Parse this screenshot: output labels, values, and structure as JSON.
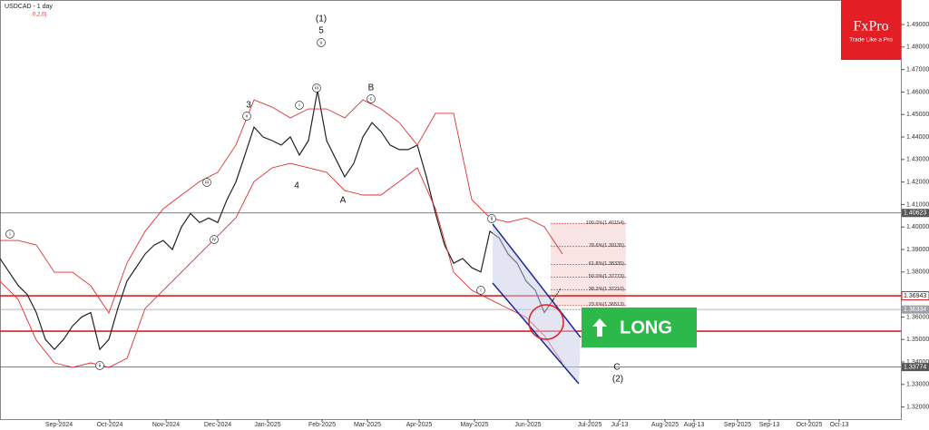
{
  "chart_data": {
    "type": "line",
    "title": "USDCAD - 1 day",
    "subtitle": "0,2,0)",
    "brand": "FxPro",
    "brand_tagline": "Trade Like a Pro",
    "signal": "LONG",
    "ylim": [
      1.3146,
      1.5009
    ],
    "yticks": [
      {
        "value": 1.32,
        "label": "1.32000"
      },
      {
        "value": 1.33,
        "label": "1.33000"
      },
      {
        "value": 1.34,
        "label": "1.34000"
      },
      {
        "value": 1.35,
        "label": "1.35000"
      },
      {
        "value": 1.36,
        "label": "1.36000"
      },
      {
        "value": 1.38,
        "label": "1.38000"
      },
      {
        "value": 1.39,
        "label": "1.39000"
      },
      {
        "value": 1.4,
        "label": "1.40000"
      },
      {
        "value": 1.41,
        "label": "1.41000"
      },
      {
        "value": 1.42,
        "label": "1.42000"
      },
      {
        "value": 1.43,
        "label": "1.43000"
      },
      {
        "value": 1.44,
        "label": "1.44000"
      },
      {
        "value": 1.45,
        "label": "1.45000"
      },
      {
        "value": 1.46,
        "label": "1.46000"
      },
      {
        "value": 1.47,
        "label": "1.47000"
      },
      {
        "value": 1.48,
        "label": "1.48000"
      },
      {
        "value": 1.49,
        "label": "1.49000"
      }
    ],
    "xtick_labels": [
      "Sep-2024",
      "Oct-2024",
      "Nov-2024",
      "Dec-2024",
      "Jan-2025",
      "Feb-2025",
      "Mar-2025",
      "Apr-2025",
      "May-2025",
      "Jun-2025",
      "Jul-2025",
      "Jul-13",
      "Aug-2025",
      "Aug-13",
      "Sep-2025",
      "Sep-13",
      "Oct-2025",
      "Oct-13"
    ],
    "series": [
      {
        "name": "USDCAD",
        "color": "#222222",
        "values": [
          1.386,
          1.38,
          1.374,
          1.37,
          1.362,
          1.35,
          1.3456,
          1.35,
          1.356,
          1.36,
          1.362,
          1.3456,
          1.35,
          1.364,
          1.376,
          1.382,
          1.388,
          1.392,
          1.394,
          1.39,
          1.4,
          1.406,
          1.402,
          1.404,
          1.402,
          1.412,
          1.42,
          1.432,
          1.4444,
          1.44,
          1.4384,
          1.4364,
          1.44,
          1.432,
          1.4384,
          1.4606,
          1.4384,
          1.4303,
          1.4223,
          1.4283,
          1.44,
          1.4464,
          1.4424,
          1.4364,
          1.4344,
          1.4344,
          1.4364,
          1.4223,
          1.4061,
          1.392,
          1.3839,
          1.386,
          1.3819,
          1.38,
          1.3981,
          1.3952,
          1.388,
          1.3839,
          1.3759,
          1.3719,
          1.362,
          1.3678
        ]
      },
      {
        "name": "Upper band",
        "color": "#e03030",
        "values": [
          1.394,
          1.394,
          1.392,
          1.3799,
          1.3799,
          1.3739,
          1.3618,
          1.384,
          1.3981,
          1.4081,
          1.4142,
          1.4202,
          1.4243,
          1.4364,
          1.4565,
          1.4533,
          1.4485,
          1.4525,
          1.4525,
          1.4485,
          1.4565,
          1.4525,
          1.4464,
          1.4364,
          1.4505,
          1.4505,
          1.4122,
          1.4041,
          1.4021,
          1.4041,
          1.4001,
          1.388
        ]
      },
      {
        "name": "Lower band",
        "color": "#e03030",
        "values": [
          1.3759,
          1.3678,
          1.3497,
          1.3396,
          1.3376,
          1.3396,
          1.3376,
          1.3416,
          1.3638,
          1.3719,
          1.3799,
          1.388,
          1.396,
          1.4041,
          1.4202,
          1.4263,
          1.4283,
          1.4263,
          1.4243,
          1.4162,
          1.4142,
          1.4142,
          1.4202,
          1.4263,
          1.4081,
          1.3799,
          1.3719,
          1.3678,
          1.3638,
          1.3598,
          1.3517,
          1.3396
        ]
      }
    ],
    "levels": [
      {
        "value": 1.40623,
        "label": "1.40623",
        "color": "#555555"
      },
      {
        "value": 1.36943,
        "label": "1.36943",
        "color": "#e02020"
      },
      {
        "value": 1.36334,
        "label": "1.36334",
        "color": "#9aa0a8"
      },
      {
        "value": 1.3537,
        "color": "#e02020"
      },
      {
        "value": 1.33774,
        "label": "1.33774",
        "color": "#555555"
      }
    ],
    "fib_levels": [
      {
        "value": 1.40154,
        "label": "100.0%(1.40154)"
      },
      {
        "value": 1.39135,
        "label": "78.6%(1.39135)"
      },
      {
        "value": 1.38335,
        "label": "61.8%(1.38335)"
      },
      {
        "value": 1.37773,
        "label": "50.0%(1.37773)"
      },
      {
        "value": 1.3721,
        "label": "38.2%(1.37210)"
      },
      {
        "value": 1.36513,
        "label": "23.6%(1.36513)"
      }
    ],
    "wave_labels": [
      "(1)",
      "5",
      "3",
      "4",
      "B",
      "A",
      "C",
      "(2)"
    ],
    "circled_labels": [
      "v",
      "iii",
      "i",
      "v",
      "iii",
      "iv",
      "ii",
      "i",
      "c",
      "ii",
      "i"
    ]
  }
}
